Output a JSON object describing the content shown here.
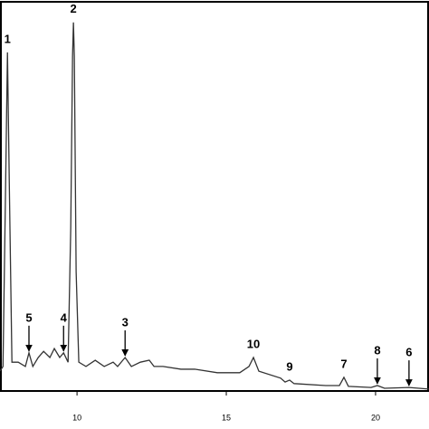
{
  "chart_data": {
    "type": "line",
    "x": [
      7.42,
      7.52,
      7.61,
      7.67,
      7.73,
      7.82,
      8.03,
      8.27,
      8.39,
      8.52,
      8.7,
      8.88,
      9.09,
      9.24,
      9.42,
      9.55,
      9.7,
      9.79,
      9.85,
      9.88,
      9.91,
      9.97,
      10.06,
      10.3,
      10.61,
      10.91,
      11.21,
      11.36,
      11.61,
      11.82,
      12.12,
      12.42,
      12.58,
      12.88,
      13.48,
      13.94,
      14.7,
      15.45,
      15.76,
      15.91,
      16.09,
      16.82,
      16.97,
      17.12,
      17.27,
      18.33,
      18.79,
      18.94,
      19.09,
      19.85,
      20.06,
      20.3,
      21.12,
      21.79
    ],
    "values": [
      5.1,
      6.3,
      54,
      87,
      54,
      7.4,
      7.4,
      6.3,
      9.8,
      6.3,
      8.6,
      10.2,
      8.6,
      10.9,
      8.6,
      9.8,
      7.4,
      42,
      86,
      94.7,
      86,
      30.7,
      7.4,
      6.3,
      7.9,
      6.3,
      7.4,
      6.3,
      8.6,
      6.3,
      7.4,
      7.9,
      6.3,
      6.3,
      5.6,
      5.6,
      4.7,
      4.7,
      6.3,
      8.6,
      5.1,
      3.3,
      2.3,
      2.8,
      1.9,
      1.4,
      1.4,
      3.5,
      1.2,
      0.9,
      1.4,
      0.7,
      0.9,
      0.5
    ],
    "color": "#333333",
    "xlim": [
      7.42,
      21.79
    ],
    "xticks": [
      10,
      15,
      20
    ],
    "ylim": [
      0,
      100
    ],
    "annotations": [
      {
        "text": "1",
        "x": 7.67,
        "y": 87,
        "arrow": false
      },
      {
        "text": "2",
        "x": 9.88,
        "y": 94.7,
        "arrow": false
      },
      {
        "text": "5",
        "x": 8.39,
        "y": 9.8,
        "arrow": true
      },
      {
        "text": "4",
        "x": 9.55,
        "y": 9.8,
        "arrow": true
      },
      {
        "text": "3",
        "x": 11.61,
        "y": 8.6,
        "arrow": true
      },
      {
        "text": "10",
        "x": 15.91,
        "y": 8.6,
        "arrow": false
      },
      {
        "text": "9",
        "x": 17.12,
        "y": 2.8,
        "arrow": false
      },
      {
        "text": "7",
        "x": 18.94,
        "y": 3.5,
        "arrow": false
      },
      {
        "text": "8",
        "x": 20.06,
        "y": 1.4,
        "arrow": true
      },
      {
        "text": "6",
        "x": 21.12,
        "y": 0.9,
        "arrow": true
      }
    ]
  }
}
